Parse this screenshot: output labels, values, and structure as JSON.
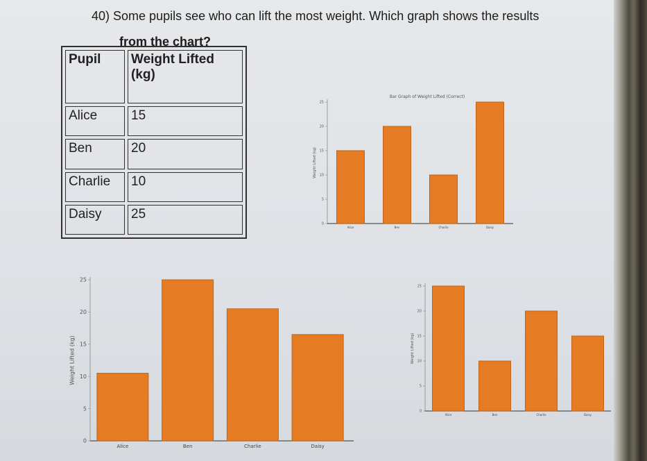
{
  "question": {
    "number": "40)",
    "text_line1": "Some pupils see who can lift the most weight. Which graph shows the results",
    "text_line2": "from the chart?"
  },
  "table": {
    "headers": [
      "Pupil",
      "Weight Lifted (kg)"
    ],
    "rows": [
      {
        "pupil": "Alice",
        "weight": "15"
      },
      {
        "pupil": "Ben",
        "weight": "20"
      },
      {
        "pupil": "Charlie",
        "weight": "10"
      },
      {
        "pupil": "Daisy",
        "weight": "25"
      }
    ]
  },
  "colors": {
    "bar_fill": "#e57c24",
    "bar_stroke": "#c0641a"
  },
  "chart_data": [
    {
      "type": "bar",
      "title": "Bar Graph of Weight Lifted (Correct)",
      "ylabel": "Weight Lifted (kg)",
      "categories": [
        "Alice",
        "Ben",
        "Charlie",
        "Daisy"
      ],
      "values": [
        15,
        20,
        10,
        25
      ],
      "ylim": [
        0,
        25
      ],
      "yticks": [
        0,
        5,
        10,
        15,
        20,
        25
      ]
    },
    {
      "type": "bar",
      "title": "",
      "ylabel": "Weight Lifted (kg)",
      "categories": [
        "Alice",
        "Ben",
        "Charlie",
        "Daisy"
      ],
      "values": [
        10.5,
        25,
        20.5,
        16.5
      ],
      "ylim": [
        0,
        25
      ],
      "yticks": [
        0,
        5,
        10,
        15,
        20,
        25
      ]
    },
    {
      "type": "bar",
      "title": "",
      "ylabel": "Weight Lifted (kg)",
      "categories": [
        "Alice",
        "Ben",
        "Charlie",
        "Daisy"
      ],
      "values": [
        25,
        10,
        20,
        15
      ],
      "ylim": [
        0,
        25
      ],
      "yticks": [
        0,
        5,
        10,
        15,
        20,
        25
      ]
    }
  ]
}
